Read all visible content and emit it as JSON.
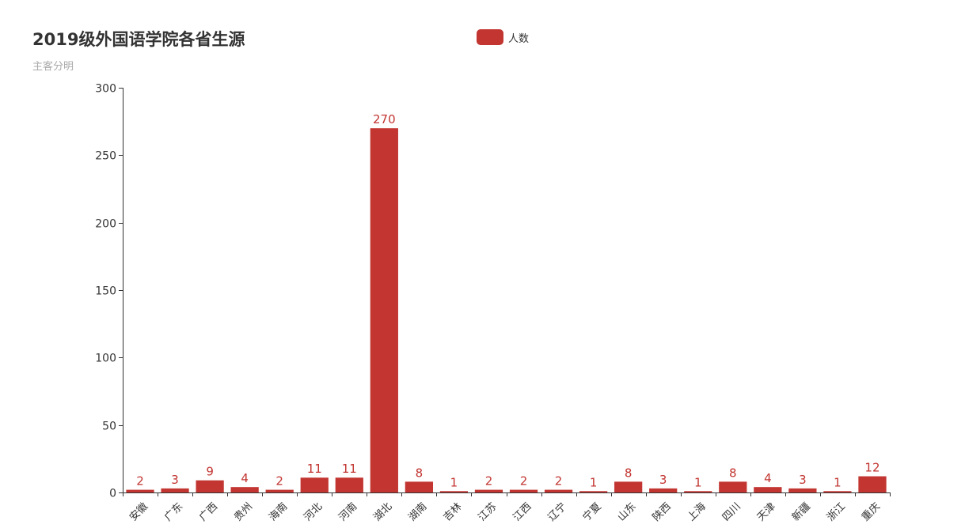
{
  "chart_data": {
    "type": "bar",
    "title": "2019级外国语学院各省生源",
    "subtitle": "主客分明",
    "legend": [
      "人数"
    ],
    "legend_position": "top-center",
    "categories": [
      "安徽",
      "广东",
      "广西",
      "贵州",
      "海南",
      "河北",
      "河南",
      "湖北",
      "湖南",
      "吉林",
      "江苏",
      "江西",
      "辽宁",
      "宁夏",
      "山东",
      "陕西",
      "上海",
      "四川",
      "天津",
      "新疆",
      "浙江",
      "重庆"
    ],
    "series": [
      {
        "name": "人数",
        "values": [
          2,
          3,
          9,
          4,
          2,
          11,
          11,
          270,
          8,
          1,
          2,
          2,
          2,
          1,
          8,
          3,
          1,
          8,
          4,
          3,
          1,
          12
        ]
      }
    ],
    "ylim": [
      0,
      300
    ],
    "yticks": [
      0,
      50,
      100,
      150,
      200,
      250,
      300
    ],
    "grid": false,
    "data_labels": true,
    "colors": {
      "bar": "#c23531",
      "axis": "#333333",
      "title": "#333333",
      "subtitle": "#aaaaaa"
    }
  }
}
